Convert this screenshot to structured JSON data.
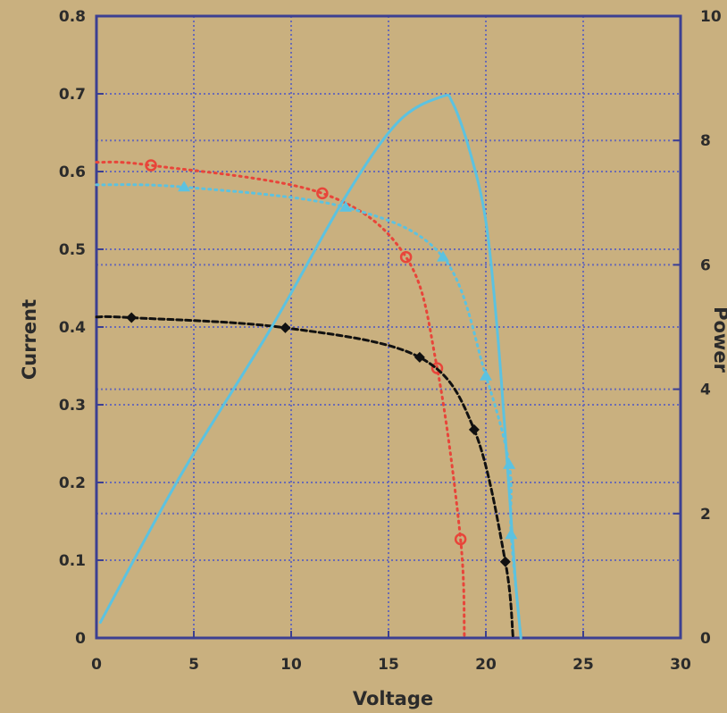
{
  "chart_data": {
    "type": "line",
    "xlabel": "Voltage",
    "ylabel": "Current",
    "y2label": "Power",
    "xlim": [
      0,
      30
    ],
    "ylim": [
      0,
      0.8
    ],
    "y2lim": [
      0,
      10
    ],
    "grid": true,
    "x_ticks": [
      "0",
      "5",
      "10",
      "15",
      "20",
      "25",
      "30"
    ],
    "y_ticks": [
      "0",
      "0.1",
      "0.2",
      "0.3",
      "0.4",
      "0.5",
      "0.6",
      "0.7",
      "0.8"
    ],
    "y2_ticks": [
      "0",
      "2",
      "4",
      "6",
      "8",
      "10"
    ],
    "colors": {
      "background": "#c9b07f",
      "grid": "#6a6bb5",
      "frame": "#3c3f92",
      "red": "#e8453a",
      "black": "#111111",
      "cyan": "#5cc2e0"
    },
    "series": [
      {
        "axis": "current",
        "color": "#e8453a",
        "marker": "open-circle",
        "line": "dotted",
        "points": [
          [
            0,
            0.612
          ],
          [
            2.8,
            0.608
          ],
          [
            11.6,
            0.572
          ],
          [
            15.9,
            0.49
          ],
          [
            17.5,
            0.347
          ],
          [
            18.7,
            0.127
          ],
          [
            18.9,
            0.0
          ]
        ]
      },
      {
        "axis": "current",
        "color": "#111111",
        "marker": "filled-diamond",
        "line": "dashed",
        "points": [
          [
            0,
            0.413
          ],
          [
            1.8,
            0.412
          ],
          [
            9.7,
            0.399
          ],
          [
            16.6,
            0.361
          ],
          [
            19.4,
            0.268
          ],
          [
            21.0,
            0.098
          ],
          [
            21.4,
            0.0
          ]
        ]
      },
      {
        "axis": "current",
        "color": "#5cc2e0",
        "marker": "filled-triangle",
        "line": "dotted",
        "points": [
          [
            0,
            0.583
          ],
          [
            4.5,
            0.58
          ],
          [
            12.8,
            0.554
          ],
          [
            17.8,
            0.49
          ],
          [
            20.0,
            0.337
          ],
          [
            21.2,
            0.223
          ],
          [
            21.3,
            0.133
          ],
          [
            21.8,
            0.0
          ]
        ]
      },
      {
        "axis": "power",
        "color": "#5cc2e0",
        "marker": "none",
        "line": "solid",
        "points": [
          [
            0.2,
            0.25
          ],
          [
            4.3,
            2.6
          ],
          [
            9.0,
            5.0
          ],
          [
            12.8,
            7.1
          ],
          [
            15.5,
            8.3
          ],
          [
            17.7,
            8.7
          ],
          [
            18.3,
            8.6
          ],
          [
            19.2,
            7.8
          ],
          [
            20.0,
            6.7
          ],
          [
            20.6,
            4.9
          ],
          [
            21.1,
            2.8
          ],
          [
            21.5,
            1.0
          ],
          [
            21.8,
            0.0
          ]
        ]
      }
    ]
  }
}
